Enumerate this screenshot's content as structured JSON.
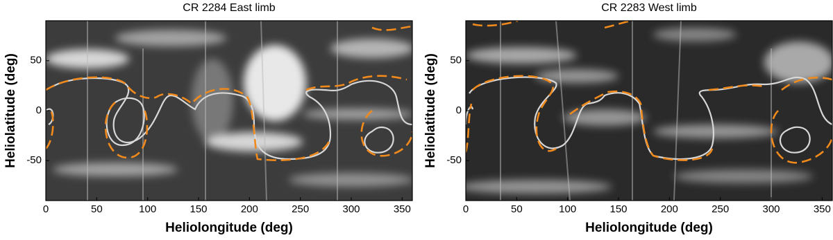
{
  "chart_data": [
    {
      "type": "image",
      "title": "CR 2284 East limb",
      "xlabel": "Heliolongitude (deg)",
      "ylabel": "Heliolatitude (deg)",
      "xlim": [
        0,
        360
      ],
      "ylim": [
        -90,
        90
      ],
      "xticks": [
        0,
        50,
        100,
        150,
        200,
        250,
        300,
        350
      ],
      "yticks": [
        -50,
        0,
        50
      ]
    },
    {
      "type": "image",
      "title": "CR 2283 West limb",
      "xlabel": "Heliolongitude (deg)",
      "ylabel": "Heliolatitude (deg)",
      "xlim": [
        0,
        360
      ],
      "ylim": [
        -90,
        90
      ],
      "xticks": [
        0,
        50,
        100,
        150,
        200,
        250,
        300,
        350
      ],
      "yticks": [
        -50,
        0,
        50
      ]
    }
  ]
}
